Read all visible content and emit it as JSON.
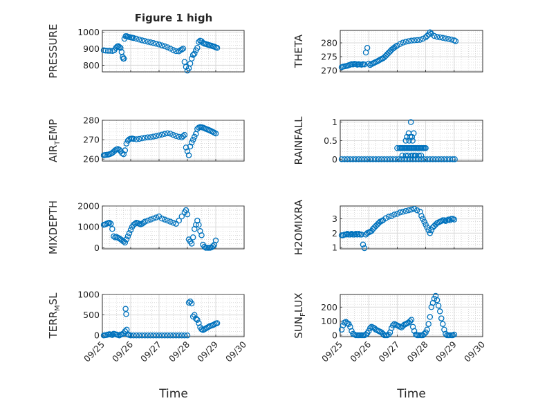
{
  "figure": {
    "title": "Figure 1 high",
    "xlabel": "Time",
    "marker_color": "#0072BD",
    "grid": "major and minor",
    "x_ticks": [
      "09/25",
      "09/26",
      "09/27",
      "09/28",
      "09/29",
      "09/30"
    ]
  },
  "chart_data": [
    {
      "type": "scatter",
      "ylabel": "PRESSURE",
      "ylim": [
        760,
        1010
      ],
      "yticks": [
        800,
        900,
        1000
      ],
      "x": [
        0.05,
        0.12,
        0.2,
        0.28,
        0.36,
        0.42,
        0.48,
        0.52,
        0.56,
        0.6,
        0.64,
        0.68,
        0.72,
        0.74,
        0.76,
        0.78,
        0.82,
        0.86,
        0.9,
        0.95,
        1.0,
        1.05,
        1.1,
        1.2,
        1.3,
        1.4,
        1.5,
        1.6,
        1.7,
        1.8,
        1.9,
        2.0,
        2.1,
        2.2,
        2.3,
        2.4,
        2.5,
        2.6,
        2.7,
        2.75,
        2.8,
        2.85,
        2.9,
        2.95,
        3.0,
        3.05,
        3.1,
        3.15,
        3.2,
        3.25,
        3.3,
        3.35,
        3.4,
        3.45,
        3.5,
        3.55,
        3.6,
        3.65,
        3.7,
        3.75,
        3.8,
        3.85,
        3.9,
        3.95,
        4.0,
        4.05
      ],
      "y": [
        890,
        888,
        887,
        887,
        886,
        890,
        905,
        912,
        915,
        910,
        905,
        880,
        850,
        840,
        840,
        960,
        975,
        975,
        972,
        970,
        968,
        966,
        964,
        960,
        955,
        950,
        946,
        942,
        938,
        934,
        930,
        925,
        920,
        914,
        908,
        900,
        892,
        885,
        884,
        890,
        895,
        900,
        820,
        790,
        768,
        782,
        810,
        840,
        862,
        870,
        890,
        905,
        940,
        948,
        945,
        935,
        930,
        928,
        925,
        922,
        920,
        918,
        914,
        912,
        908,
        905
      ]
    },
    {
      "type": "scatter",
      "ylabel": "THETA",
      "ylim": [
        269.5,
        284.5
      ],
      "yticks": [
        270,
        275,
        280
      ],
      "x": [
        0.05,
        0.1,
        0.15,
        0.2,
        0.25,
        0.3,
        0.35,
        0.4,
        0.45,
        0.5,
        0.55,
        0.6,
        0.65,
        0.7,
        0.75,
        0.8,
        0.85,
        0.9,
        0.95,
        1.0,
        1.05,
        1.1,
        1.15,
        1.2,
        1.25,
        1.3,
        1.35,
        1.4,
        1.45,
        1.5,
        1.55,
        1.6,
        1.65,
        1.7,
        1.75,
        1.8,
        1.85,
        1.9,
        1.95,
        2.0,
        2.1,
        2.2,
        2.3,
        2.4,
        2.5,
        2.6,
        2.7,
        2.8,
        2.9,
        3.0,
        3.05,
        3.1,
        3.15,
        3.2,
        3.3,
        3.4,
        3.5,
        3.6,
        3.7,
        3.8,
        3.9,
        4.0,
        4.05
      ],
      "y": [
        271.2,
        271.4,
        271.5,
        271.6,
        271.7,
        271.9,
        272.1,
        272.3,
        272.2,
        272.4,
        272.3,
        272.1,
        272.3,
        272.2,
        272.1,
        272.3,
        272.2,
        276.5,
        278.2,
        272.5,
        272.0,
        272.3,
        272.6,
        272.8,
        273.1,
        273.3,
        273.6,
        273.9,
        274.2,
        274.4,
        274.8,
        275.3,
        275.9,
        276.4,
        276.9,
        277.5,
        277.9,
        278.3,
        278.7,
        279.0,
        279.6,
        280.1,
        280.4,
        280.6,
        280.8,
        280.9,
        281.0,
        281.1,
        281.5,
        282.0,
        282.5,
        283.0,
        283.8,
        283.3,
        282.5,
        282.2,
        282.0,
        281.8,
        281.6,
        281.4,
        281.2,
        280.9,
        280.6
      ]
    },
    {
      "type": "scatter",
      "ylabel": "AIR_TEMP",
      "ylim": [
        259,
        280
      ],
      "yticks": [
        260,
        270,
        280
      ],
      "x": [
        0.05,
        0.1,
        0.15,
        0.2,
        0.25,
        0.3,
        0.35,
        0.4,
        0.45,
        0.5,
        0.55,
        0.6,
        0.65,
        0.7,
        0.75,
        0.8,
        0.85,
        0.9,
        0.95,
        1.0,
        1.05,
        1.1,
        1.2,
        1.3,
        1.4,
        1.5,
        1.6,
        1.7,
        1.8,
        1.9,
        2.0,
        2.1,
        2.2,
        2.3,
        2.4,
        2.5,
        2.6,
        2.7,
        2.8,
        2.85,
        2.9,
        2.95,
        3.0,
        3.05,
        3.1,
        3.15,
        3.2,
        3.25,
        3.3,
        3.35,
        3.4,
        3.45,
        3.5,
        3.55,
        3.6,
        3.65,
        3.7,
        3.75,
        3.8,
        3.85,
        3.9,
        3.95,
        4.0
      ],
      "y": [
        262.0,
        262.1,
        262.2,
        262.3,
        262.5,
        262.8,
        263.2,
        263.8,
        264.5,
        265.0,
        265.2,
        264.8,
        264.0,
        263.0,
        262.5,
        264.5,
        268.0,
        269.5,
        270.2,
        270.5,
        270.6,
        270.4,
        270.2,
        270.4,
        270.7,
        271.0,
        271.2,
        271.3,
        271.6,
        271.9,
        272.2,
        272.6,
        273.0,
        273.3,
        273.1,
        272.5,
        271.9,
        271.5,
        271.2,
        271.8,
        272.5,
        266.0,
        264.0,
        262.0,
        266.5,
        268.5,
        270.0,
        271.5,
        273.0,
        275.5,
        276.2,
        276.5,
        276.4,
        276.2,
        275.9,
        275.6,
        275.3,
        275.0,
        274.7,
        274.3,
        274.0,
        273.6,
        273.2
      ]
    },
    {
      "type": "scatter",
      "ylabel": "RAINFALL",
      "ylim": [
        -0.05,
        1.05
      ],
      "yticks": [
        0,
        0.5,
        1
      ],
      "x": [
        0.05,
        0.15,
        0.25,
        0.35,
        0.45,
        0.55,
        0.65,
        0.75,
        0.85,
        0.95,
        1.05,
        1.15,
        1.25,
        1.35,
        1.45,
        1.55,
        1.65,
        1.75,
        1.85,
        1.95,
        2.05,
        2.15,
        2.25,
        2.35,
        2.45,
        2.55,
        2.65,
        2.75,
        2.85,
        2.95,
        3.05,
        3.15,
        3.25,
        3.35,
        3.45,
        3.55,
        3.65,
        3.75,
        3.85,
        3.95,
        4.02,
        2.0,
        2.08,
        2.12,
        2.16,
        2.2,
        2.24,
        2.28,
        2.32,
        2.36,
        2.4,
        2.44,
        2.48,
        2.52,
        2.56,
        2.6,
        2.64,
        2.68,
        2.72,
        2.76,
        2.8,
        2.84,
        2.88,
        2.92,
        2.96,
        3.0,
        2.18,
        2.3,
        2.38,
        2.5,
        2.56,
        2.62,
        2.66,
        2.76,
        2.84,
        2.34,
        2.4,
        2.46,
        2.52,
        2.58,
        2.42,
        2.48,
        2.3,
        2.54
      ],
      "y": [
        0,
        0,
        0,
        0,
        0,
        0,
        0,
        0,
        0,
        0,
        0,
        0,
        0,
        0,
        0,
        0,
        0,
        0,
        0,
        0,
        0,
        0,
        0,
        0,
        0,
        0,
        0,
        0,
        0,
        0,
        0,
        0,
        0,
        0,
        0,
        0,
        0,
        0,
        0,
        0,
        0,
        0.3,
        0.3,
        0.3,
        0.3,
        0.3,
        0.3,
        0.3,
        0.3,
        0.3,
        0.3,
        0.3,
        0.3,
        0.3,
        0.3,
        0.3,
        0.3,
        0.3,
        0.3,
        0.3,
        0.3,
        0.3,
        0.3,
        0.3,
        0.3,
        0.3,
        0.1,
        0.1,
        0.1,
        0.1,
        0.1,
        0.1,
        0.1,
        0.1,
        0.1,
        0.6,
        0.7,
        0.6,
        0.6,
        0.7,
        0.5,
        1.0,
        0.5,
        0.5
      ]
    },
    {
      "type": "scatter",
      "ylabel": "MIXDEPTH",
      "ylim": [
        -50,
        2000
      ],
      "yticks": [
        0,
        1000,
        2000
      ],
      "x": [
        0.05,
        0.1,
        0.15,
        0.2,
        0.25,
        0.3,
        0.35,
        0.4,
        0.45,
        0.5,
        0.55,
        0.6,
        0.65,
        0.7,
        0.75,
        0.8,
        0.85,
        0.9,
        0.95,
        1.0,
        1.05,
        1.1,
        1.15,
        1.2,
        1.25,
        1.3,
        1.35,
        1.4,
        1.45,
        1.5,
        1.6,
        1.7,
        1.8,
        1.9,
        2.0,
        2.1,
        2.2,
        2.3,
        2.4,
        2.5,
        2.6,
        2.7,
        2.8,
        2.9,
        2.95,
        3.0,
        3.05,
        3.1,
        3.15,
        3.2,
        3.25,
        3.3,
        3.35,
        3.4,
        3.45,
        3.5,
        3.55,
        3.6,
        3.65,
        3.7,
        3.75,
        3.8,
        3.85,
        3.9,
        3.95,
        4.0
      ],
      "y": [
        1100,
        1120,
        1150,
        1180,
        1200,
        1150,
        900,
        550,
        500,
        520,
        480,
        450,
        400,
        350,
        300,
        250,
        400,
        550,
        700,
        850,
        1000,
        1100,
        1150,
        1200,
        1180,
        1150,
        1120,
        1150,
        1200,
        1250,
        1300,
        1350,
        1400,
        1450,
        1500,
        1400,
        1350,
        1300,
        1250,
        1200,
        1150,
        1300,
        1500,
        1700,
        1800,
        1600,
        400,
        300,
        200,
        500,
        900,
        1100,
        1300,
        1100,
        800,
        600,
        150,
        50,
        0,
        0,
        0,
        0,
        20,
        80,
        150,
        350
      ]
    },
    {
      "type": "scatter",
      "ylabel": "H2OMIXRA",
      "ylim": [
        0.9,
        3.9
      ],
      "yticks": [
        1,
        2,
        3
      ],
      "x": [
        0.05,
        0.1,
        0.15,
        0.2,
        0.25,
        0.3,
        0.35,
        0.4,
        0.45,
        0.5,
        0.55,
        0.6,
        0.65,
        0.7,
        0.75,
        0.8,
        0.85,
        0.9,
        0.95,
        1.0,
        1.05,
        1.1,
        1.15,
        1.2,
        1.25,
        1.3,
        1.35,
        1.4,
        1.45,
        1.5,
        1.6,
        1.7,
        1.8,
        1.9,
        2.0,
        2.1,
        2.2,
        2.3,
        2.4,
        2.5,
        2.6,
        2.7,
        2.8,
        2.85,
        2.9,
        2.95,
        3.0,
        3.05,
        3.1,
        3.15,
        3.2,
        3.25,
        3.3,
        3.35,
        3.4,
        3.45,
        3.5,
        3.55,
        3.6,
        3.65,
        3.7,
        3.75,
        3.8,
        3.85,
        3.9,
        3.95,
        4.0
      ],
      "y": [
        1.85,
        1.85,
        1.9,
        1.9,
        1.95,
        1.9,
        1.9,
        1.95,
        1.9,
        1.9,
        1.95,
        1.9,
        1.95,
        1.9,
        1.9,
        1.2,
        0.95,
        1.9,
        2.0,
        2.05,
        2.1,
        2.15,
        2.3,
        2.4,
        2.5,
        2.6,
        2.7,
        2.8,
        2.85,
        2.9,
        3.05,
        3.15,
        3.2,
        3.3,
        3.35,
        3.45,
        3.5,
        3.55,
        3.6,
        3.65,
        3.7,
        3.6,
        3.5,
        3.2,
        3.0,
        2.8,
        2.6,
        2.4,
        2.2,
        2.0,
        2.2,
        2.4,
        2.5,
        2.6,
        2.7,
        2.75,
        2.8,
        2.85,
        2.9,
        2.9,
        2.85,
        2.9,
        2.95,
        2.9,
        3.0,
        3.0,
        2.95
      ]
    },
    {
      "type": "scatter",
      "ylabel": "TERR_MSL",
      "ylim": [
        -30,
        1000
      ],
      "yticks": [
        0,
        500,
        1000
      ],
      "x": [
        0.05,
        0.1,
        0.15,
        0.2,
        0.25,
        0.3,
        0.35,
        0.4,
        0.45,
        0.5,
        0.55,
        0.6,
        0.65,
        0.7,
        0.75,
        0.8,
        0.82,
        0.84,
        0.86,
        0.9,
        0.95,
        1.0,
        1.1,
        1.2,
        1.3,
        1.4,
        1.5,
        1.6,
        1.7,
        1.8,
        1.9,
        2.0,
        2.1,
        2.2,
        2.3,
        2.4,
        2.5,
        2.6,
        2.7,
        2.8,
        2.9,
        3.0,
        3.05,
        3.1,
        3.15,
        3.2,
        3.25,
        3.3,
        3.35,
        3.4,
        3.45,
        3.5,
        3.55,
        3.6,
        3.65,
        3.7,
        3.75,
        3.8,
        3.85,
        3.9,
        3.95,
        4.0,
        4.05
      ],
      "y": [
        0,
        5,
        10,
        20,
        30,
        20,
        10,
        40,
        30,
        20,
        10,
        0,
        20,
        30,
        50,
        100,
        650,
        520,
        140,
        20,
        10,
        0,
        0,
        0,
        0,
        0,
        0,
        0,
        0,
        0,
        0,
        0,
        0,
        0,
        0,
        0,
        0,
        0,
        0,
        0,
        0,
        0,
        800,
        830,
        780,
        460,
        500,
        410,
        380,
        300,
        200,
        150,
        130,
        150,
        170,
        190,
        210,
        230,
        240,
        250,
        270,
        290,
        300
      ]
    },
    {
      "type": "scatter",
      "ylabel": "SUN_FLUX",
      "ylim": [
        -10,
        290
      ],
      "yticks": [
        0,
        100,
        200
      ],
      "x": [
        0.05,
        0.1,
        0.15,
        0.2,
        0.25,
        0.3,
        0.35,
        0.4,
        0.45,
        0.5,
        0.55,
        0.6,
        0.65,
        0.7,
        0.75,
        0.8,
        0.85,
        0.9,
        0.95,
        1.0,
        1.05,
        1.1,
        1.15,
        1.2,
        1.25,
        1.3,
        1.35,
        1.4,
        1.45,
        1.5,
        1.55,
        1.6,
        1.65,
        1.7,
        1.75,
        1.8,
        1.85,
        1.9,
        1.95,
        2.0,
        2.05,
        2.1,
        2.15,
        2.2,
        2.25,
        2.3,
        2.35,
        2.4,
        2.45,
        2.5,
        2.55,
        2.6,
        2.65,
        2.7,
        2.75,
        2.8,
        2.85,
        2.9,
        2.95,
        3.0,
        3.05,
        3.1,
        3.15,
        3.2,
        3.25,
        3.3,
        3.35,
        3.4,
        3.45,
        3.5,
        3.55,
        3.6,
        3.65,
        3.7,
        3.75,
        3.8,
        3.85,
        3.9,
        3.95,
        4.0
      ],
      "y": [
        40,
        70,
        90,
        95,
        85,
        80,
        60,
        30,
        10,
        5,
        0,
        0,
        0,
        0,
        0,
        0,
        0,
        5,
        15,
        30,
        50,
        60,
        55,
        50,
        40,
        35,
        30,
        25,
        20,
        10,
        0,
        0,
        0,
        5,
        20,
        50,
        70,
        80,
        75,
        70,
        65,
        60,
        55,
        65,
        75,
        80,
        85,
        90,
        100,
        110,
        60,
        30,
        5,
        0,
        0,
        0,
        0,
        0,
        10,
        20,
        40,
        80,
        130,
        200,
        230,
        260,
        280,
        250,
        210,
        170,
        120,
        80,
        40,
        10,
        0,
        0,
        0,
        0,
        0,
        5
      ]
    }
  ]
}
